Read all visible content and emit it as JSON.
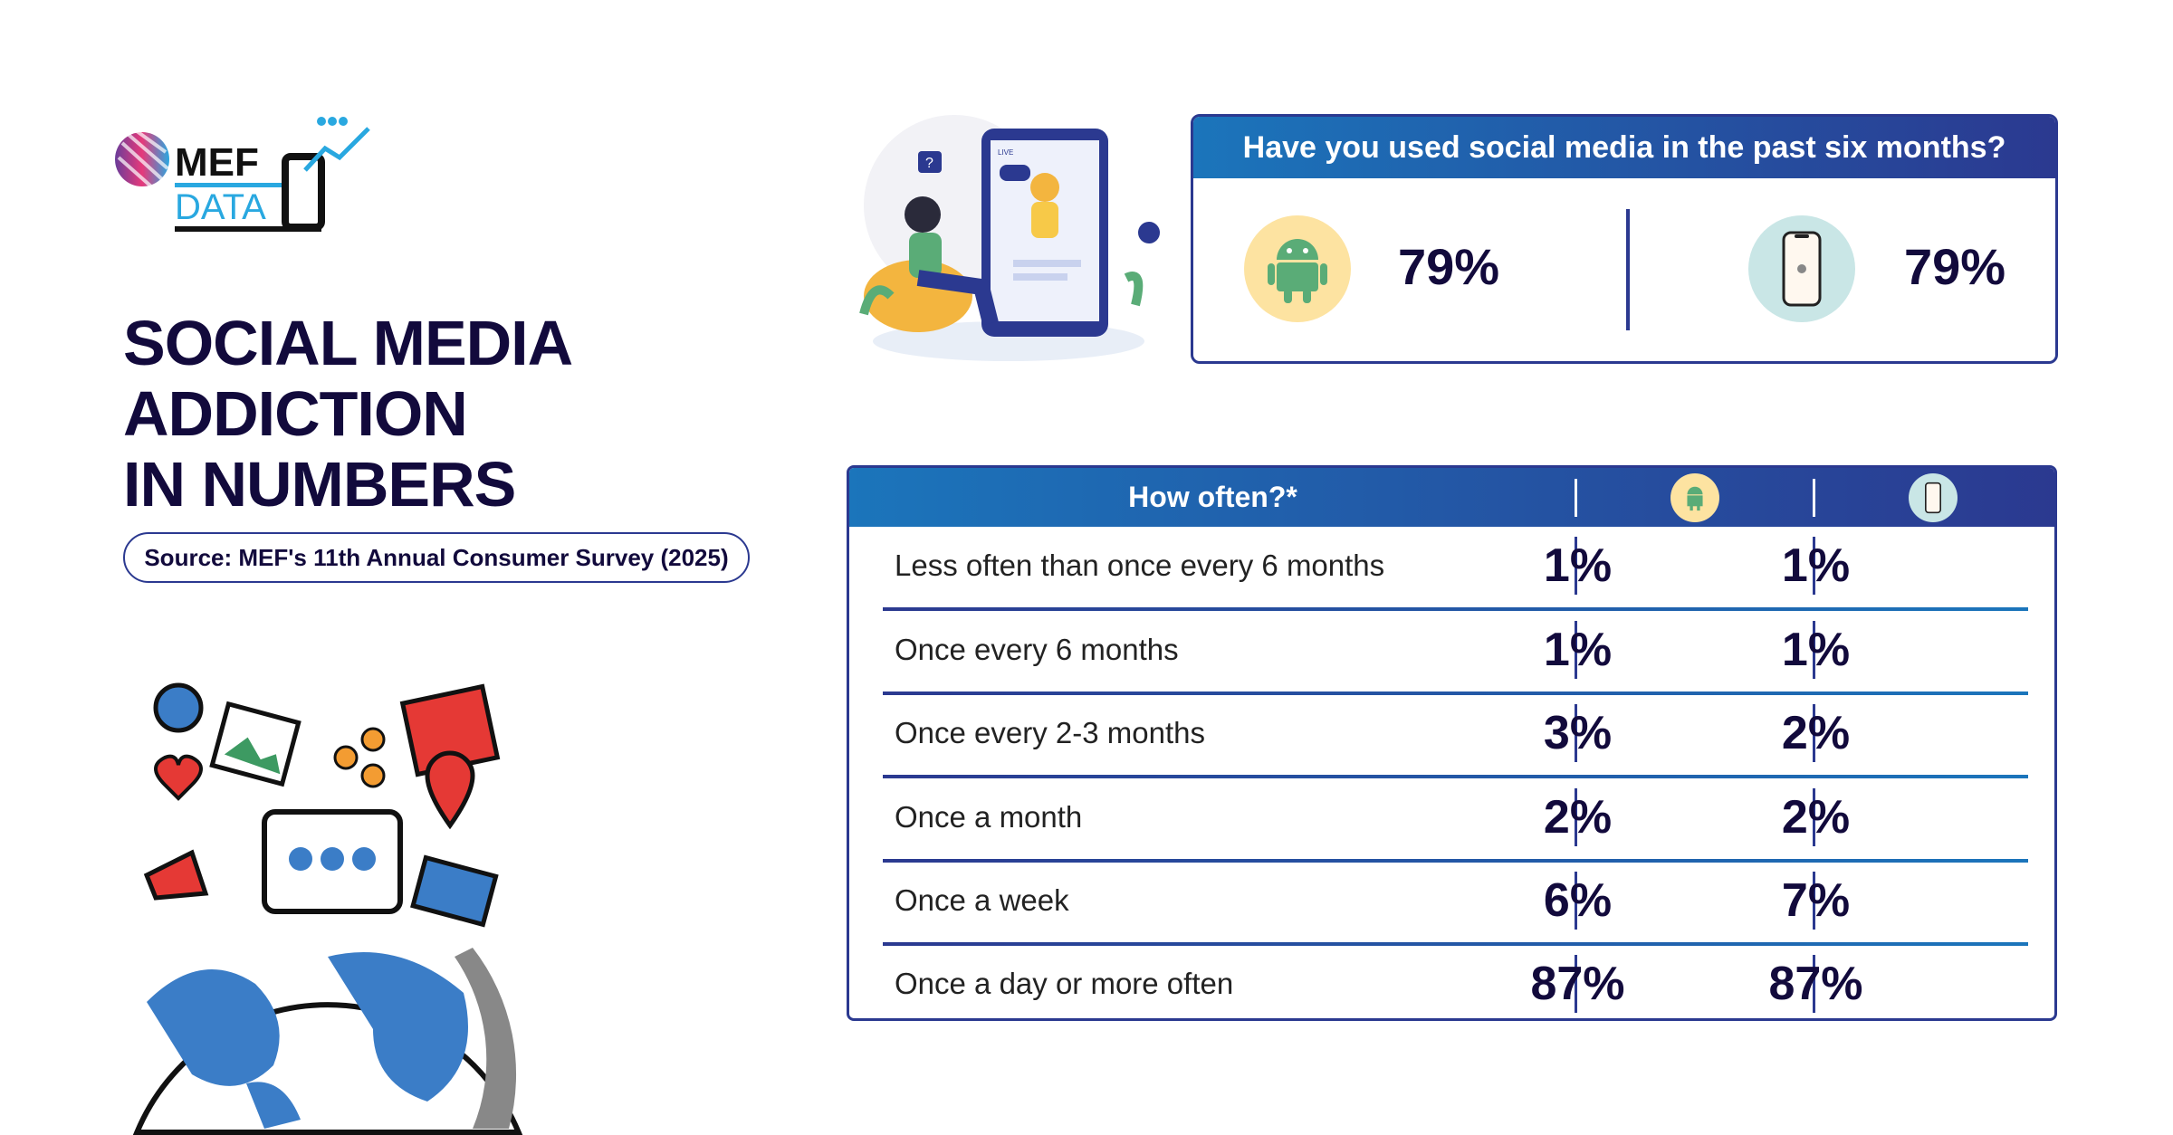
{
  "logo": {
    "text_top": "MEF",
    "text_bottom": "DATA"
  },
  "title": {
    "line1": "SOCIAL MEDIA",
    "line2": "ADDICTION",
    "line3": "IN NUMBERS"
  },
  "source": "Source: MEF's 11th Annual Consumer Survey (2025)",
  "illustration_top": {
    "live_label": "LIVE"
  },
  "question": {
    "title": "Have you used social media in the past six months?",
    "android": {
      "icon": "android-icon",
      "value": "79%"
    },
    "ios": {
      "icon": "iphone-icon",
      "value": "79%"
    }
  },
  "table": {
    "header": "How often?*",
    "columns": [
      {
        "icon": "android-icon"
      },
      {
        "icon": "iphone-icon"
      }
    ],
    "rows": [
      {
        "label": "Less often than once every 6 months",
        "android": "1%",
        "ios": "1%"
      },
      {
        "label": "Once every 6 months",
        "android": "1%",
        "ios": "1%"
      },
      {
        "label": "Once every 2-3 months",
        "android": "3%",
        "ios": "2%"
      },
      {
        "label": "Once a month",
        "android": "2%",
        "ios": "2%"
      },
      {
        "label": "Once a week",
        "android": "6%",
        "ios": "7%"
      },
      {
        "label": "Once a day or more often",
        "android": "87%",
        "ios": "87%"
      }
    ]
  },
  "colors": {
    "navy": "#2b3990",
    "blue": "#1b75bb",
    "text": "#120a3c",
    "android_bg": "#fde3a1",
    "android": "#5aac77",
    "ios_bg": "#c9e6e6"
  }
}
